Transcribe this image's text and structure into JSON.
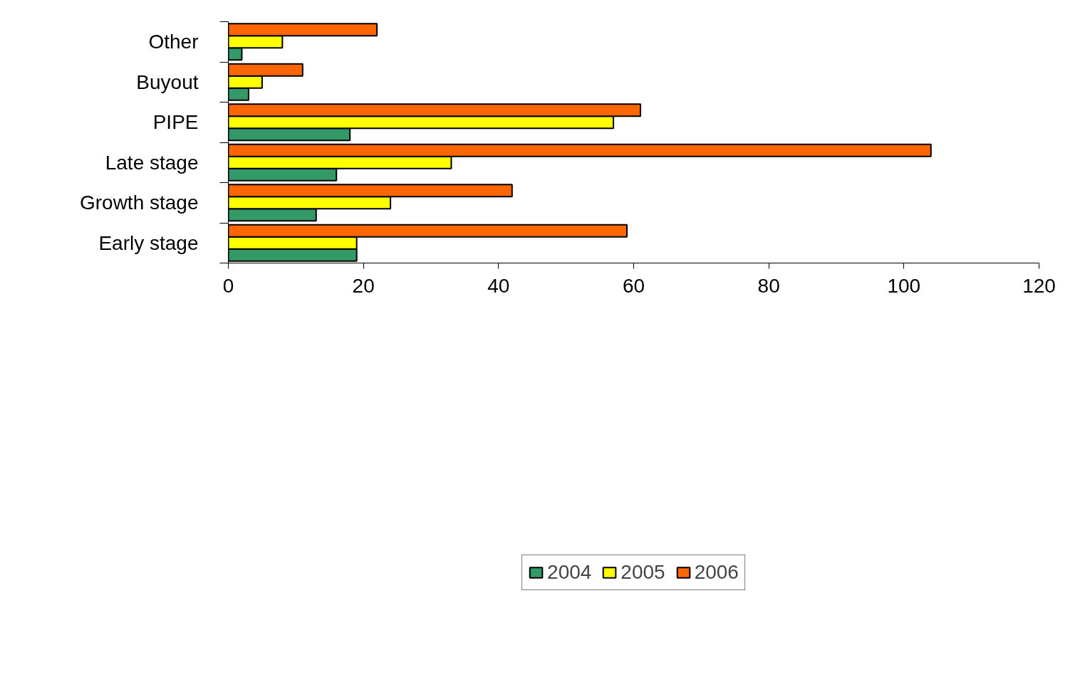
{
  "chart_data": {
    "type": "bar",
    "orientation": "horizontal",
    "categories": [
      "Other",
      "Buyout",
      "PIPE",
      "Late stage",
      "Growth stage",
      "Early stage"
    ],
    "series": [
      {
        "name": "2004",
        "color": "#339966",
        "values": [
          2,
          3,
          18,
          16,
          13,
          19
        ]
      },
      {
        "name": "2005",
        "color": "#ffff00",
        "values": [
          8,
          5,
          57,
          33,
          24,
          19
        ]
      },
      {
        "name": "2006",
        "color": "#ff6600",
        "values": [
          22,
          11,
          61,
          104,
          42,
          59
        ]
      }
    ],
    "xlim": [
      0,
      120
    ],
    "xticks": [
      0,
      20,
      40,
      60,
      80,
      100,
      120
    ],
    "grid": false,
    "legend": "bottom"
  }
}
